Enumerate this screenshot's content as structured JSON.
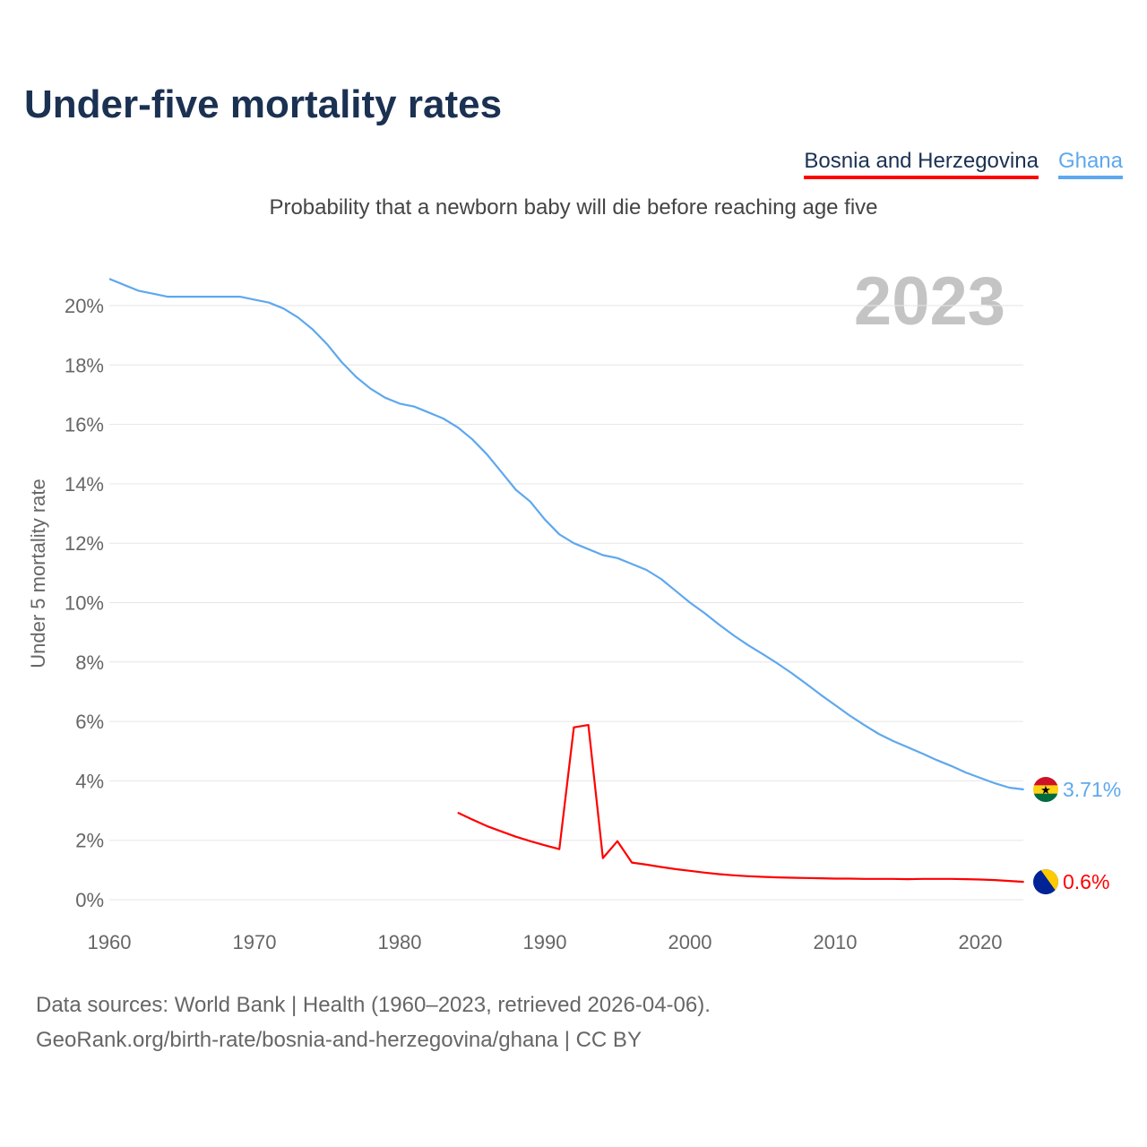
{
  "title": "Under-five mortality rates",
  "subtitle": "Probability that a newborn baby will die before reaching age five",
  "year_label": "2023",
  "sources": [
    "Data sources: World Bank | Health (1960–2023, retrieved 2026-04-06).",
    "GeoRank.org/birth-rate/bosnia-and-herzegovina/ghana | CC BY"
  ],
  "chart_data": {
    "type": "line",
    "title": "Under-five mortality rates",
    "xlabel": "",
    "ylabel": "Under 5 mortality rate",
    "xlim": [
      1960,
      2023
    ],
    "ylim": [
      0,
      21
    ],
    "x_ticks": [
      "1960",
      "1970",
      "1980",
      "1990",
      "2000",
      "2010",
      "2020"
    ],
    "y_ticks": [
      "0%",
      "2%",
      "4%",
      "6%",
      "8%",
      "10%",
      "12%",
      "14%",
      "16%",
      "18%",
      "20%"
    ],
    "grid": true,
    "legend_position": "top-right",
    "series": [
      {
        "name": "Bosnia and Herzegovina",
        "color": "#ff0000",
        "end_label": "0.6%",
        "start_year": 1984,
        "values": [
          2.93,
          2.7,
          2.48,
          2.3,
          2.12,
          1.97,
          1.83,
          1.7,
          5.8,
          5.88,
          1.4,
          1.97,
          1.25,
          1.18,
          1.1,
          1.03,
          0.97,
          0.91,
          0.86,
          0.82,
          0.79,
          0.77,
          0.75,
          0.74,
          0.73,
          0.72,
          0.71,
          0.71,
          0.7,
          0.7,
          0.7,
          0.69,
          0.7,
          0.7,
          0.7,
          0.69,
          0.68,
          0.66,
          0.63,
          0.6
        ]
      },
      {
        "name": "Ghana",
        "color": "#5ea8ee",
        "end_label": "3.71%",
        "start_year": 1960,
        "values": [
          20.9,
          20.7,
          20.5,
          20.4,
          20.3,
          20.3,
          20.3,
          20.3,
          20.3,
          20.3,
          20.2,
          20.1,
          19.9,
          19.6,
          19.2,
          18.7,
          18.1,
          17.6,
          17.2,
          16.9,
          16.7,
          16.6,
          16.4,
          16.2,
          15.9,
          15.5,
          15.0,
          14.4,
          13.8,
          13.4,
          12.8,
          12.3,
          12.0,
          11.8,
          11.6,
          11.5,
          11.3,
          11.1,
          10.8,
          10.4,
          10.0,
          9.65,
          9.26,
          8.9,
          8.57,
          8.27,
          7.96,
          7.63,
          7.27,
          6.9,
          6.55,
          6.2,
          5.88,
          5.58,
          5.34,
          5.13,
          4.92,
          4.7,
          4.5,
          4.28,
          4.1,
          3.92,
          3.77,
          3.71
        ]
      }
    ]
  }
}
